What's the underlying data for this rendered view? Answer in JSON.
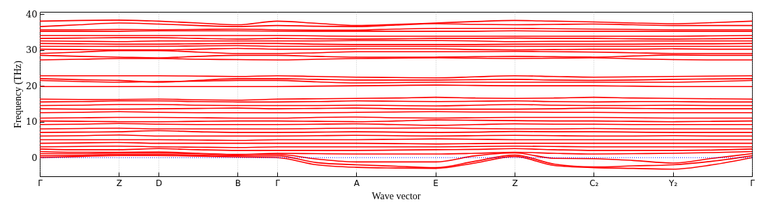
{
  "chart_data": {
    "type": "line",
    "xlabel": "Wave vector",
    "ylabel": "Frequency (THz)",
    "grid": "x",
    "categories": [
      "Γ",
      null,
      "Z",
      "D",
      null,
      "B",
      "Γ",
      null,
      "A",
      null,
      "E",
      null,
      "Z",
      null,
      "C₂",
      null,
      "Y₂",
      null,
      "Γ"
    ],
    "ylim": [
      -5.2,
      40.6
    ],
    "yticks": [
      0,
      10,
      20,
      30,
      40
    ],
    "ref_lines": [
      {
        "axis": "y",
        "value": 0,
        "color": "#0000ff",
        "line_style": "dotted"
      }
    ],
    "series": [
      {
        "color": "#ff0000",
        "values": [
          38.0,
          38.2,
          38.3,
          38.0,
          37.5,
          37.0,
          38.0,
          37.4,
          36.8,
          37.1,
          37.5,
          37.9,
          38.2,
          38.0,
          37.8,
          37.5,
          37.3,
          37.6,
          38.0
        ]
      },
      {
        "color": "#ff0000",
        "values": [
          36.5,
          37.0,
          37.5,
          37.2,
          36.8,
          36.5,
          36.8,
          36.6,
          36.5,
          36.9,
          37.3,
          37.1,
          37.0,
          37.1,
          37.2,
          37.0,
          36.8,
          36.8,
          36.8
        ]
      },
      {
        "color": "#ff0000",
        "values": [
          35.6,
          35.6,
          35.7,
          35.6,
          35.7,
          35.8,
          35.6,
          35.5,
          35.5,
          35.8,
          36.0,
          36.0,
          36.0,
          35.9,
          35.8,
          35.7,
          35.6,
          35.6,
          35.6
        ]
      },
      {
        "color": "#ff0000",
        "values": [
          35.2,
          35.2,
          35.2,
          35.3,
          35.3,
          35.3,
          35.2,
          35.2,
          35.2,
          35.2,
          35.2,
          35.2,
          35.3,
          35.2,
          35.2,
          35.2,
          35.2,
          35.2,
          35.2
        ]
      },
      {
        "color": "#ff0000",
        "values": [
          34.0,
          34.0,
          34.0,
          34.0,
          34.0,
          34.0,
          34.0,
          33.9,
          33.8,
          33.8,
          33.8,
          33.8,
          33.8,
          33.8,
          33.8,
          33.8,
          33.8,
          33.9,
          34.0
        ]
      },
      {
        "color": "#ff0000",
        "values": [
          33.2,
          33.3,
          33.4,
          33.4,
          33.2,
          33.0,
          33.2,
          33.1,
          33.0,
          33.1,
          33.2,
          33.2,
          33.3,
          33.2,
          33.2,
          33.1,
          33.0,
          33.1,
          33.2
        ]
      },
      {
        "color": "#ff0000",
        "values": [
          32.5,
          32.4,
          32.3,
          32.5,
          32.5,
          32.5,
          32.5,
          32.5,
          32.6,
          32.6,
          32.6,
          32.5,
          32.3,
          32.4,
          32.4,
          32.5,
          32.5,
          32.5,
          32.5
        ]
      },
      {
        "color": "#ff0000",
        "values": [
          31.8,
          31.7,
          31.6,
          31.6,
          31.7,
          31.8,
          31.8,
          31.6,
          31.5,
          31.5,
          31.5,
          31.5,
          31.6,
          31.6,
          31.6,
          31.6,
          31.7,
          31.7,
          31.8
        ]
      },
      {
        "color": "#ff0000",
        "values": [
          31.0,
          31.0,
          31.0,
          31.0,
          31.1,
          31.2,
          31.0,
          31.0,
          31.0,
          31.0,
          31.0,
          31.0,
          31.0,
          31.0,
          31.0,
          31.0,
          31.0,
          31.0,
          31.0
        ]
      },
      {
        "color": "#ff0000",
        "values": [
          30.2,
          30.1,
          30.0,
          30.0,
          30.2,
          30.4,
          30.2,
          30.2,
          30.3,
          30.3,
          30.3,
          30.1,
          30.0,
          30.1,
          30.2,
          30.2,
          30.3,
          30.2,
          30.2
        ]
      },
      {
        "color": "#ff0000",
        "values": [
          29.0,
          29.4,
          29.8,
          29.8,
          29.4,
          29.0,
          29.0,
          29.2,
          29.5,
          29.5,
          29.5,
          29.5,
          29.6,
          29.5,
          29.4,
          29.2,
          29.0,
          29.0,
          29.0
        ]
      },
      {
        "color": "#ff0000",
        "values": [
          28.5,
          28.2,
          28.0,
          27.8,
          28.2,
          28.5,
          28.5,
          28.2,
          28.0,
          28.0,
          28.0,
          28.1,
          28.2,
          28.1,
          28.0,
          28.3,
          28.6,
          28.5,
          28.5
        ]
      },
      {
        "color": "#ff0000",
        "values": [
          27.2,
          27.4,
          27.6,
          27.6,
          27.4,
          27.3,
          27.2,
          27.4,
          27.6,
          27.7,
          27.8,
          27.7,
          27.6,
          27.7,
          27.8,
          27.5,
          27.3,
          27.2,
          27.2
        ]
      },
      {
        "color": "#ff0000",
        "values": [
          22.8,
          22.8,
          22.8,
          22.8,
          22.7,
          22.6,
          22.8,
          22.6,
          22.4,
          22.3,
          22.2,
          22.5,
          22.8,
          22.6,
          22.4,
          22.5,
          22.6,
          22.7,
          22.8
        ]
      },
      {
        "color": "#ff0000",
        "values": [
          22.0,
          21.7,
          21.5,
          21.0,
          21.5,
          22.0,
          22.0,
          21.8,
          21.6,
          21.6,
          21.6,
          21.7,
          21.8,
          21.6,
          21.5,
          21.6,
          21.8,
          21.9,
          22.0
        ]
      },
      {
        "color": "#ff0000",
        "values": [
          21.5,
          21.2,
          21.0,
          21.2,
          21.3,
          21.5,
          21.5,
          21.1,
          20.8,
          20.9,
          21.0,
          21.0,
          21.0,
          21.0,
          21.0,
          21.0,
          21.0,
          21.2,
          21.5
        ]
      },
      {
        "color": "#ff0000",
        "values": [
          19.8,
          19.8,
          19.8,
          19.8,
          19.8,
          19.8,
          19.8,
          19.9,
          20.0,
          20.1,
          20.2,
          20.1,
          20.0,
          20.0,
          20.0,
          19.9,
          19.8,
          19.8,
          19.8
        ]
      },
      {
        "color": "#ff0000",
        "values": [
          16.3,
          16.2,
          16.2,
          16.3,
          16.1,
          16.0,
          16.3,
          16.4,
          16.5,
          16.6,
          16.8,
          16.6,
          16.5,
          16.6,
          16.8,
          16.6,
          16.5,
          16.4,
          16.3
        ]
      },
      {
        "color": "#ff0000",
        "values": [
          15.5,
          15.6,
          15.8,
          15.8,
          15.6,
          15.5,
          15.5,
          15.6,
          15.8,
          15.7,
          15.6,
          15.7,
          15.8,
          15.6,
          15.5,
          15.6,
          15.6,
          15.5,
          15.5
        ]
      },
      {
        "color": "#ff0000",
        "values": [
          14.5,
          14.6,
          14.8,
          14.8,
          14.6,
          14.5,
          14.5,
          14.5,
          14.6,
          14.5,
          14.4,
          14.6,
          14.8,
          14.6,
          14.5,
          14.5,
          14.6,
          14.5,
          14.5
        ]
      },
      {
        "color": "#ff0000",
        "values": [
          13.6,
          13.5,
          13.5,
          13.6,
          13.7,
          13.8,
          13.6,
          13.7,
          13.8,
          13.6,
          13.5,
          13.5,
          13.5,
          13.6,
          13.8,
          13.7,
          13.6,
          13.6,
          13.6
        ]
      },
      {
        "color": "#ff0000",
        "values": [
          12.5,
          12.6,
          12.8,
          12.6,
          12.5,
          12.5,
          12.5,
          12.5,
          12.6,
          12.7,
          12.8,
          12.7,
          12.7,
          12.6,
          12.6,
          12.5,
          12.5,
          12.5,
          12.5
        ]
      },
      {
        "color": "#ff0000",
        "values": [
          11.0,
          11.1,
          11.2,
          11.2,
          11.1,
          11.0,
          11.0,
          11.2,
          11.3,
          11.1,
          11.0,
          11.1,
          11.2,
          11.2,
          11.2,
          11.1,
          11.0,
          11.0,
          11.0
        ]
      },
      {
        "color": "#ff0000",
        "values": [
          10.2,
          10.1,
          10.0,
          10.0,
          10.1,
          10.2,
          10.2,
          10.1,
          10.0,
          10.2,
          10.5,
          10.4,
          10.3,
          10.2,
          10.2,
          10.1,
          10.0,
          10.1,
          10.2
        ]
      },
      {
        "color": "#ff0000",
        "values": [
          9.2,
          9.3,
          9.5,
          9.3,
          9.2,
          9.2,
          9.2,
          9.3,
          9.4,
          9.2,
          9.0,
          9.2,
          9.4,
          9.3,
          9.3,
          9.2,
          9.2,
          9.2,
          9.2
        ]
      },
      {
        "color": "#ff0000",
        "values": [
          8.0,
          8.1,
          8.2,
          8.0,
          8.0,
          8.0,
          8.0,
          8.1,
          8.2,
          8.2,
          8.3,
          8.1,
          8.0,
          8.0,
          8.1,
          8.0,
          8.0,
          8.0,
          8.0
        ]
      },
      {
        "color": "#ff0000",
        "values": [
          7.0,
          7.1,
          7.2,
          7.5,
          7.2,
          7.0,
          7.0,
          7.1,
          7.2,
          7.1,
          7.0,
          7.1,
          7.3,
          7.2,
          7.2,
          7.1,
          7.0,
          7.0,
          7.0
        ]
      },
      {
        "color": "#ff0000",
        "values": [
          6.0,
          6.1,
          6.3,
          6.0,
          6.0,
          6.0,
          6.0,
          6.1,
          6.2,
          6.1,
          6.0,
          6.1,
          6.2,
          6.1,
          6.0,
          6.0,
          6.1,
          6.0,
          6.0
        ]
      },
      {
        "color": "#ff0000",
        "values": [
          5.0,
          5.0,
          5.0,
          5.0,
          4.9,
          4.8,
          5.0,
          5.0,
          5.0,
          5.1,
          5.2,
          5.1,
          5.0,
          5.0,
          5.0,
          5.0,
          5.0,
          5.0,
          5.0
        ]
      },
      {
        "color": "#ff0000",
        "values": [
          4.0,
          4.1,
          4.2,
          4.0,
          4.0,
          4.0,
          4.0,
          4.0,
          4.0,
          3.9,
          3.8,
          3.9,
          4.0,
          4.0,
          4.0,
          4.0,
          4.0,
          4.0,
          4.0
        ]
      },
      {
        "color": "#ff0000",
        "values": [
          3.0,
          3.1,
          3.2,
          3.0,
          2.9,
          2.8,
          3.0,
          3.0,
          3.0,
          3.0,
          3.0,
          3.1,
          3.2,
          3.1,
          3.0,
          3.0,
          3.0,
          3.0,
          3.0
        ]
      },
      {
        "color": "#ff0000",
        "values": [
          2.4,
          2.2,
          2.2,
          2.5,
          2.2,
          2.0,
          2.0,
          2.0,
          2.0,
          2.1,
          2.2,
          2.3,
          2.5,
          2.2,
          2.0,
          2.0,
          2.0,
          2.1,
          2.4
        ]
      },
      {
        "color": "#ff0000",
        "values": [
          1.7,
          1.5,
          1.5,
          1.6,
          1.2,
          0.8,
          1.2,
          1.1,
          1.0,
          1.0,
          1.0,
          1.2,
          1.5,
          1.2,
          1.0,
          1.1,
          1.2,
          1.4,
          1.7
        ]
      },
      {
        "color": "#ff0000",
        "values": [
          0,
          0.3,
          0.6,
          0.6,
          0.4,
          0.2,
          0,
          -2.0,
          -2.7,
          -2.9,
          -3.0,
          -1.5,
          0.3,
          -2.2,
          -2.8,
          -3.0,
          -3.2,
          -2.0,
          0
        ]
      },
      {
        "color": "#ff0000",
        "values": [
          0.5,
          0.6,
          0.9,
          0.9,
          0.7,
          0.5,
          0.5,
          -1.4,
          -2.0,
          -2.4,
          -2.8,
          -1.0,
          0.7,
          -1.8,
          -2.6,
          -2.3,
          -2.0,
          -1.0,
          0.5
        ]
      },
      {
        "color": "#ff0000",
        "values": [
          1.1,
          1.1,
          1.3,
          1.3,
          1.1,
          0.9,
          0.9,
          -0.4,
          -1.2,
          -1.2,
          -1.2,
          0.5,
          1.3,
          -0.2,
          -0.3,
          -0.8,
          -1.5,
          -0.2,
          1.1
        ]
      }
    ]
  }
}
